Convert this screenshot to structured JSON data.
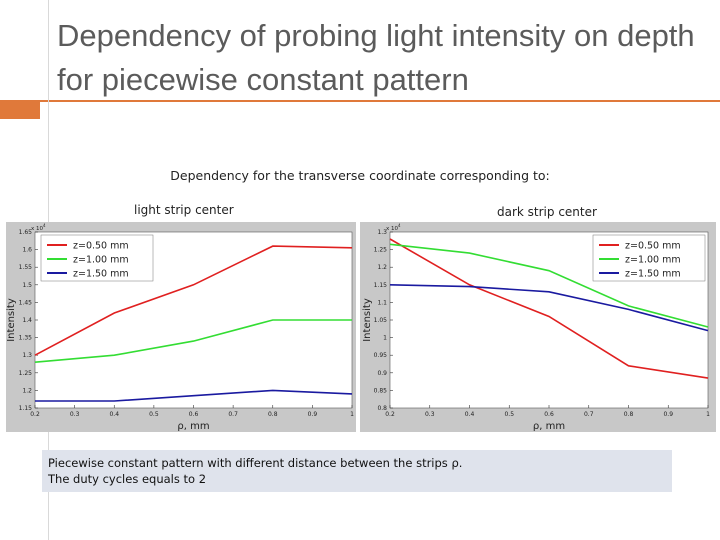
{
  "slide": {
    "title": "Dependency of probing light intensity on depth for piecewise constant pattern",
    "subtitle": "Dependency  for the transverse coordinate  corresponding to:",
    "left_label": "light strip center",
    "right_label": "dark strip center",
    "note_line1": "Piecewise constant pattern with different distance between the strips ρ.",
    "note_line2": "The duty cycles  equals to  2",
    "accent_color": "#E0793A"
  },
  "chart_data": [
    {
      "type": "line",
      "xlabel": "ρ, mm",
      "ylabel": "Intensity",
      "xlim": [
        0.2,
        1.0
      ],
      "ylim": [
        1.15,
        1.65
      ],
      "y_multiplier": "x 10^4",
      "xticks": [
        "0.2",
        "0.3",
        "0.4",
        "0.5",
        "0.6",
        "0.7",
        "0.8",
        "0.9",
        "1"
      ],
      "yticks": [
        "1.15",
        "1.2",
        "1.25",
        "1.3",
        "1.35",
        "1.4",
        "1.45",
        "1.5",
        "1.55",
        "1.6",
        "1.65"
      ],
      "grid": false,
      "legend_position": "top-left",
      "series": [
        {
          "name": "z=0.50 mm",
          "color": "#e02020",
          "x": [
            0.2,
            0.4,
            0.6,
            0.8,
            1.0
          ],
          "values": [
            1.3,
            1.42,
            1.5,
            1.61,
            1.605
          ]
        },
        {
          "name": "z=1.00 mm",
          "color": "#33dd33",
          "x": [
            0.2,
            0.4,
            0.6,
            0.8,
            1.0
          ],
          "values": [
            1.28,
            1.3,
            1.34,
            1.4,
            1.4
          ]
        },
        {
          "name": "z=1.50 mm",
          "color": "#1a1aa0",
          "x": [
            0.2,
            0.4,
            0.6,
            0.8,
            1.0
          ],
          "values": [
            1.17,
            1.17,
            1.185,
            1.2,
            1.19
          ]
        }
      ]
    },
    {
      "type": "line",
      "xlabel": "ρ, mm",
      "ylabel": "Intensity",
      "xlim": [
        0.2,
        1.0
      ],
      "ylim": [
        0.8,
        1.3
      ],
      "y_multiplier": "x 10^4",
      "xticks": [
        "0.2",
        "0.3",
        "0.4",
        "0.5",
        "0.6",
        "0.7",
        "0.8",
        "0.9",
        "1"
      ],
      "yticks": [
        "0.8",
        "0.85",
        "0.9",
        "0.95",
        "1",
        "1.05",
        "1.1",
        "1.15",
        "1.2",
        "1.25",
        "1.3"
      ],
      "grid": false,
      "legend_position": "top-right",
      "series": [
        {
          "name": "z=0.50 mm",
          "color": "#e02020",
          "x": [
            0.2,
            0.4,
            0.6,
            0.8,
            1.0
          ],
          "values": [
            1.28,
            1.15,
            1.06,
            0.92,
            0.885
          ]
        },
        {
          "name": "z=1.00 mm",
          "color": "#33dd33",
          "x": [
            0.2,
            0.4,
            0.6,
            0.8,
            1.0
          ],
          "values": [
            1.265,
            1.24,
            1.19,
            1.09,
            1.03
          ]
        },
        {
          "name": "z=1.50 mm",
          "color": "#1a1aa0",
          "x": [
            0.2,
            0.4,
            0.6,
            0.8,
            1.0
          ],
          "values": [
            1.15,
            1.145,
            1.13,
            1.08,
            1.02
          ]
        }
      ]
    }
  ]
}
